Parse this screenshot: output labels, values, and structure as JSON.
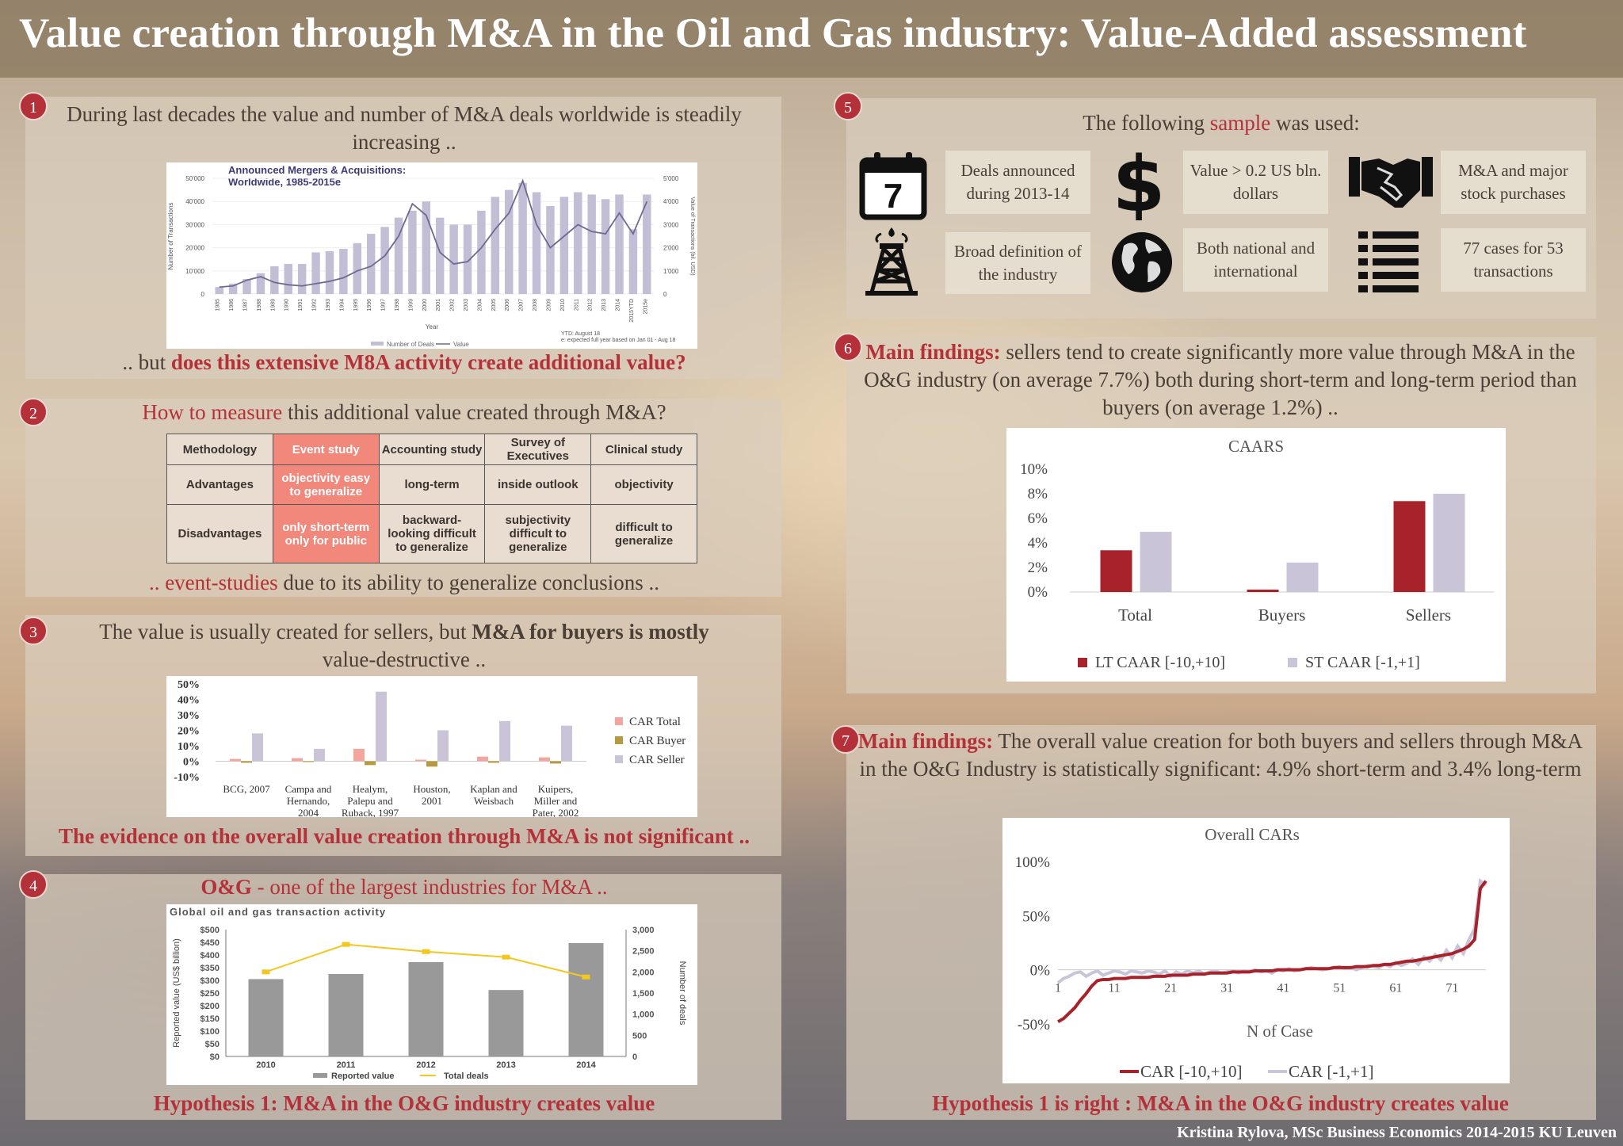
{
  "title": "Value creation through M&A in the Oil and Gas industry:  Value-Added assessment",
  "footer": "Kristina Rylova, MSc Business Economics 2014-2015 KU Leuven",
  "colors": {
    "accent": "#b5313a",
    "lt": "#a8222c",
    "st": "#c9c4d8",
    "grey": "#999999",
    "line": "#f2c81e"
  },
  "s1": {
    "num": "1",
    "heading": "During last decades the value and number of  M&A deals worldwide is steadily increasing ..",
    "bottom_pre": ".. but ",
    "bottom_red": "does this extensive M8A activity create additional value?"
  },
  "s2": {
    "num": "2",
    "heading_red": "How to measure",
    "heading_rest": " this additional value created through M&A?",
    "bottom_red": ".. event-studies",
    "bottom_rest": " due to its ability to generalize conclusions ..",
    "table": {
      "headers": [
        "Methodology",
        "Event study",
        "Accounting study",
        "Survey of Executives",
        "Clinical study"
      ],
      "advantages": [
        "Advantages",
        "objectivity easy to generalize",
        "long-term",
        "inside outlook",
        "objectivity"
      ],
      "disadvantages": [
        "Disadvantages",
        "only short-term only for public",
        "backward-looking difficult to generalize",
        "subjectivity difficult to generalize",
        "difficult to generalize"
      ]
    }
  },
  "s3": {
    "num": "3",
    "heading_pre": "The value is usually created for sellers, but ",
    "heading_bold": "M&A for buyers is mostly",
    "heading_post": "value-destructive ..",
    "bottom": "The evidence on the overall value creation through M&A is not significant .."
  },
  "s4": {
    "num": "4",
    "heading_red": "O&G",
    "heading_rest": " - one of  the largest industries for M&A ..",
    "bottom": "Hypothesis 1: M&A in the O&G industry creates value"
  },
  "s5": {
    "num": "5",
    "heading_pre": "The following ",
    "heading_red": "sample",
    "heading_post": " was used:",
    "cards": [
      "Deals announced during 2013-14",
      "Value > 0.2 US bln. dollars",
      "M&A and major stock purchases",
      "Broad definition of the industry",
      "Both national and international",
      "77 cases for 53 transactions"
    ],
    "icons": [
      "calendar-icon",
      "dollar-icon",
      "handshake-icon",
      "oil-rig-icon",
      "globe-icon",
      "list-icon"
    ],
    "calendar_digit": "7"
  },
  "s6": {
    "num": "6",
    "heading_red": "Main findings:",
    "heading_rest": " sellers tend to create significantly more value through M&A in the O&G industry (on average 7.7%) both during short-term and long-term period than buyers (on average 1.2%) .."
  },
  "s7": {
    "num": "7",
    "heading_red": "Main findings:",
    "heading_rest": " The overall value creation for both buyers and sellers through M&A in the O&G Industry is statistically significant: 4.9% short-term and 3.4% long-term",
    "bottom": "Hypothesis 1 is right : M&A in the O&G industry creates value"
  },
  "chart_data": [
    {
      "id": "ma-worldwide",
      "type": "bar",
      "title": "Announced Mergers & Acquisitions: Worldwide, 1985-2015e",
      "categories": [
        "1985",
        "1986",
        "1987",
        "1988",
        "1989",
        "1990",
        "1991",
        "1992",
        "1993",
        "1994",
        "1995",
        "1996",
        "1997",
        "1998",
        "1999",
        "2000",
        "2001",
        "2002",
        "2003",
        "2004",
        "2005",
        "2006",
        "2007",
        "2008",
        "2009",
        "2010",
        "2011",
        "2012",
        "2013",
        "2014",
        "2015YTD",
        "2015e"
      ],
      "series": [
        {
          "name": "Number of Deals",
          "type": "bar",
          "axis": "left",
          "values": [
            3000,
            4500,
            6500,
            9000,
            12000,
            13000,
            13000,
            18000,
            18500,
            19500,
            22000,
            26000,
            29000,
            33000,
            36000,
            40000,
            33000,
            30000,
            30000,
            36000,
            42000,
            45000,
            48000,
            44000,
            38000,
            42000,
            44000,
            43000,
            41000,
            43000,
            28000,
            43000
          ]
        },
        {
          "name": "Value",
          "type": "line",
          "axis": "right",
          "values": [
            300,
            350,
            600,
            750,
            500,
            400,
            350,
            450,
            550,
            700,
            1000,
            1200,
            1650,
            2500,
            3900,
            3400,
            1800,
            1300,
            1400,
            2000,
            2800,
            3500,
            4900,
            3000,
            2000,
            2500,
            3000,
            2700,
            2600,
            3500,
            2600,
            4000
          ]
        }
      ],
      "ylabel_left": "Number of Transactions",
      "ylabel_right": "Value of Transactions (bil. USD)",
      "xlabel": "Year",
      "yticks_left": [
        "0",
        "10'000",
        "20'000",
        "30'000",
        "40'000",
        "50'000"
      ],
      "yticks_right": [
        "0",
        "1'000",
        "2'000",
        "3'000",
        "4'000",
        "5'000"
      ],
      "ylim_left": [
        0,
        50000
      ],
      "ylim_right": [
        0,
        5000
      ],
      "notes": [
        "YTD: August 18",
        "e: expected full year based on Jan 01 - Aug 18"
      ]
    },
    {
      "id": "car-studies",
      "type": "bar",
      "categories": [
        "BCG, 2007",
        "Campa and Hernando, 2004",
        "Healym, Palepu and Ruback, 1997",
        "Houston, 2001",
        "Kaplan and Weisbach",
        "Kuipers, Miller and Pater, 2002"
      ],
      "series": [
        {
          "name": "CAR Total",
          "color": "#f4a59d",
          "values": [
            1.5,
            2,
            8,
            1,
            3,
            2.5
          ]
        },
        {
          "name": "CAR Buyer",
          "color": "#b89a3e",
          "values": [
            -1,
            -0.5,
            -2.5,
            -3.5,
            -1,
            -1.5
          ]
        },
        {
          "name": "CAR Seller",
          "color": "#c9c4d8",
          "values": [
            18,
            8,
            45,
            20,
            26,
            23
          ]
        }
      ],
      "yticks": [
        "50%",
        "40%",
        "30%",
        "20%",
        "10%",
        "0%",
        "-10%"
      ],
      "ylim": [
        -10,
        50
      ],
      "legend": "right"
    },
    {
      "id": "og-transactions",
      "type": "bar",
      "title": "Global oil and gas transaction activity",
      "categories": [
        "2010",
        "2011",
        "2012",
        "2013",
        "2014"
      ],
      "series": [
        {
          "name": "Reported value",
          "type": "bar",
          "axis": "left",
          "values": [
            305,
            325,
            372,
            262,
            447
          ]
        },
        {
          "name": "Total deals",
          "type": "line",
          "axis": "right",
          "values": [
            2000,
            2650,
            2480,
            2350,
            1880
          ]
        }
      ],
      "ylabel_left": "Reported value (US$ billion)",
      "ylabel_right": "Number of deals",
      "yticks_left": [
        "$0",
        "$50",
        "$100",
        "$150",
        "$200",
        "$250",
        "$300",
        "$350",
        "$400",
        "$450",
        "$500"
      ],
      "yticks_right": [
        "0",
        "500",
        "1,000",
        "1,500",
        "2,000",
        "2,500",
        "3,000"
      ],
      "ylim_left": [
        0,
        500
      ],
      "ylim_right": [
        0,
        3000
      ],
      "legend": "bottom"
    },
    {
      "id": "caars",
      "type": "bar",
      "title": "CAARS",
      "categories": [
        "Total",
        "Buyers",
        "Sellers"
      ],
      "series": [
        {
          "name": "LT CAAR [-10,+10]",
          "values": [
            3.4,
            0.2,
            7.4
          ]
        },
        {
          "name": "ST CAAR [-1,+1]",
          "values": [
            4.9,
            2.4,
            8.0
          ]
        }
      ],
      "yticks": [
        "0%",
        "2%",
        "4%",
        "6%",
        "8%",
        "10%"
      ],
      "ylim": [
        0,
        10
      ],
      "legend": "bottom"
    },
    {
      "id": "overall-cars",
      "type": "line",
      "title": "Overall CARs",
      "xlabel": "N of Case",
      "xticks": [
        "1",
        "11",
        "21",
        "31",
        "41",
        "51",
        "61",
        "71"
      ],
      "yticks": [
        "-50%",
        "0%",
        "50%",
        "100%"
      ],
      "ylim": [
        -50,
        100
      ],
      "xlim": [
        1,
        77
      ],
      "legend": "bottom",
      "series": [
        {
          "name": "CAR [-10,+10]",
          "values": [
            -48,
            -45,
            -40,
            -35,
            -28,
            -22,
            -15,
            -10,
            -9,
            -9,
            -8,
            -8,
            -8,
            -7,
            -7,
            -7,
            -7,
            -6,
            -6,
            -6,
            -5,
            -5,
            -5,
            -5,
            -4,
            -4,
            -4,
            -3,
            -3,
            -3,
            -3,
            -2,
            -2,
            -2,
            -2,
            -1,
            -1,
            -1,
            -1,
            0,
            0,
            0,
            0,
            0,
            1,
            1,
            1,
            1,
            1,
            2,
            2,
            2,
            2,
            3,
            3,
            3,
            4,
            4,
            5,
            5,
            6,
            7,
            8,
            8,
            9,
            10,
            11,
            12,
            13,
            14,
            15,
            17,
            19,
            22,
            28,
            75,
            82
          ]
        },
        {
          "name": "CAR [-1,+1]",
          "values": [
            -12,
            -8,
            -6,
            -3,
            -2,
            -6,
            -3,
            -1,
            -5,
            -3,
            -1,
            -2,
            -4,
            -1,
            -2,
            -3,
            -1,
            -2,
            -4,
            -1,
            -6,
            -2,
            -4,
            -1,
            -3,
            -1,
            -4,
            -2,
            -1,
            -3,
            -2,
            -1,
            -3,
            -1,
            -2,
            0,
            -2,
            -1,
            -3,
            0,
            -1,
            1,
            -1,
            0,
            1,
            2,
            1,
            0,
            1,
            2,
            3,
            1,
            2,
            0,
            2,
            4,
            3,
            2,
            5,
            3,
            7,
            4,
            6,
            10,
            5,
            12,
            8,
            14,
            9,
            18,
            11,
            22,
            15,
            28,
            38,
            82,
            78
          ]
        }
      ]
    }
  ]
}
